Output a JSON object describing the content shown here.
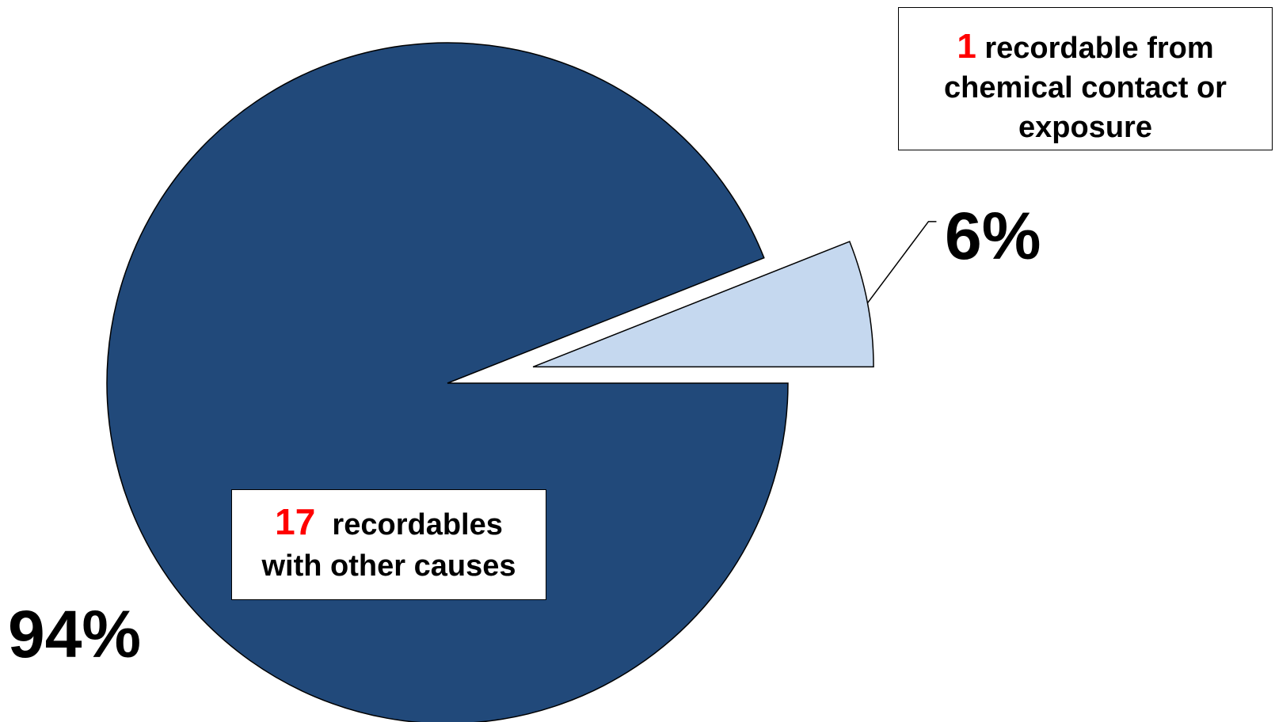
{
  "chart_data": {
    "type": "pie",
    "slices": [
      {
        "count": "17",
        "label_line1": "recordables",
        "label_line2": "with other causes",
        "percent": 94,
        "percent_label": "94%",
        "color": "#21497A",
        "exploded": false
      },
      {
        "count": "1",
        "label_line1": "recordable from",
        "label_line2": "chemical contact or",
        "label_line3": "exposure",
        "percent": 6,
        "percent_label": "6%",
        "color": "#C5D8EF",
        "exploded": true
      }
    ],
    "legend": "none"
  }
}
